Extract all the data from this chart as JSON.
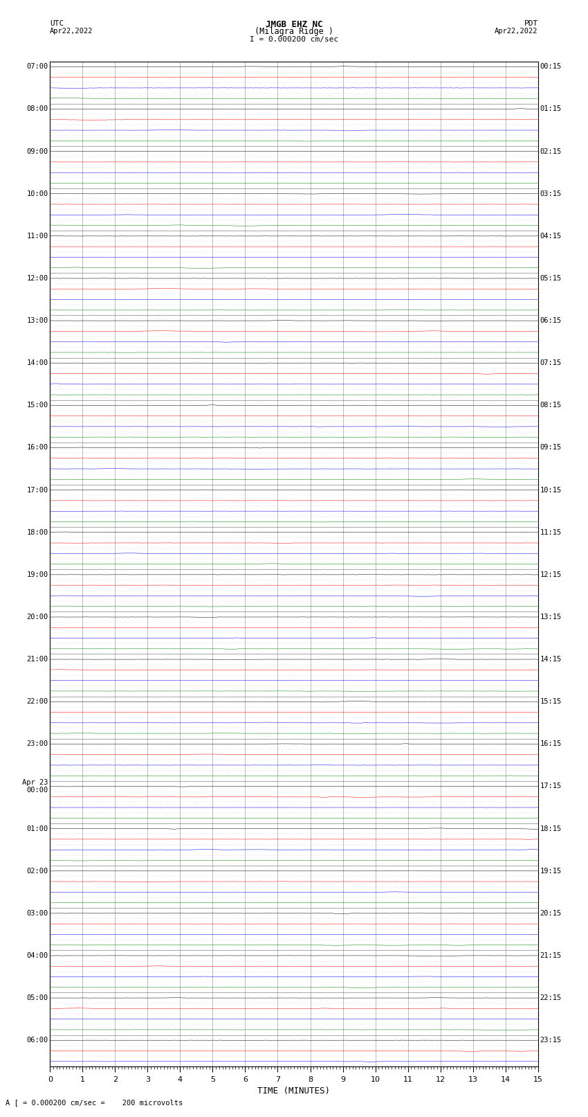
{
  "title_line1": "JMGB EHZ NC",
  "title_line2": "(Milagra Ridge )",
  "scale_text": "I = 0.000200 cm/sec",
  "left_label": "UTC",
  "right_label": "PDT",
  "left_date": "Apr22,2022",
  "right_date": "Apr22,2022",
  "bottom_note": "A [ = 0.000200 cm/sec =    200 microvolts",
  "xlabel": "TIME (MINUTES)",
  "utc_labels": [
    [
      "07:00",
      0
    ],
    [
      "08:00",
      4
    ],
    [
      "09:00",
      8
    ],
    [
      "10:00",
      12
    ],
    [
      "11:00",
      16
    ],
    [
      "12:00",
      20
    ],
    [
      "13:00",
      24
    ],
    [
      "14:00",
      28
    ],
    [
      "15:00",
      32
    ],
    [
      "16:00",
      36
    ],
    [
      "17:00",
      40
    ],
    [
      "18:00",
      44
    ],
    [
      "19:00",
      48
    ],
    [
      "20:00",
      52
    ],
    [
      "21:00",
      56
    ],
    [
      "22:00",
      60
    ],
    [
      "23:00",
      64
    ],
    [
      "Apr 23\n00:00",
      68
    ],
    [
      "01:00",
      72
    ],
    [
      "02:00",
      76
    ],
    [
      "03:00",
      80
    ],
    [
      "04:00",
      84
    ],
    [
      "05:00",
      88
    ],
    [
      "06:00",
      92
    ]
  ],
  "pdt_labels": [
    [
      "00:15",
      0
    ],
    [
      "01:15",
      4
    ],
    [
      "02:15",
      8
    ],
    [
      "03:15",
      12
    ],
    [
      "04:15",
      16
    ],
    [
      "05:15",
      20
    ],
    [
      "06:15",
      24
    ],
    [
      "07:15",
      28
    ],
    [
      "08:15",
      32
    ],
    [
      "09:15",
      36
    ],
    [
      "10:15",
      40
    ],
    [
      "11:15",
      44
    ],
    [
      "12:15",
      48
    ],
    [
      "13:15",
      52
    ],
    [
      "14:15",
      56
    ],
    [
      "15:15",
      60
    ],
    [
      "16:15",
      64
    ],
    [
      "17:15",
      68
    ],
    [
      "18:15",
      72
    ],
    [
      "19:15",
      76
    ],
    [
      "20:15",
      80
    ],
    [
      "21:15",
      84
    ],
    [
      "22:15",
      88
    ],
    [
      "23:15",
      92
    ]
  ],
  "trace_colors": [
    "black",
    "red",
    "blue",
    "green"
  ],
  "n_traces": 95,
  "xmin": 0,
  "xmax": 15,
  "bg_color": "white",
  "grid_color": "#777777",
  "noise_amplitude": 0.025,
  "figsize": [
    8.5,
    16.13
  ]
}
